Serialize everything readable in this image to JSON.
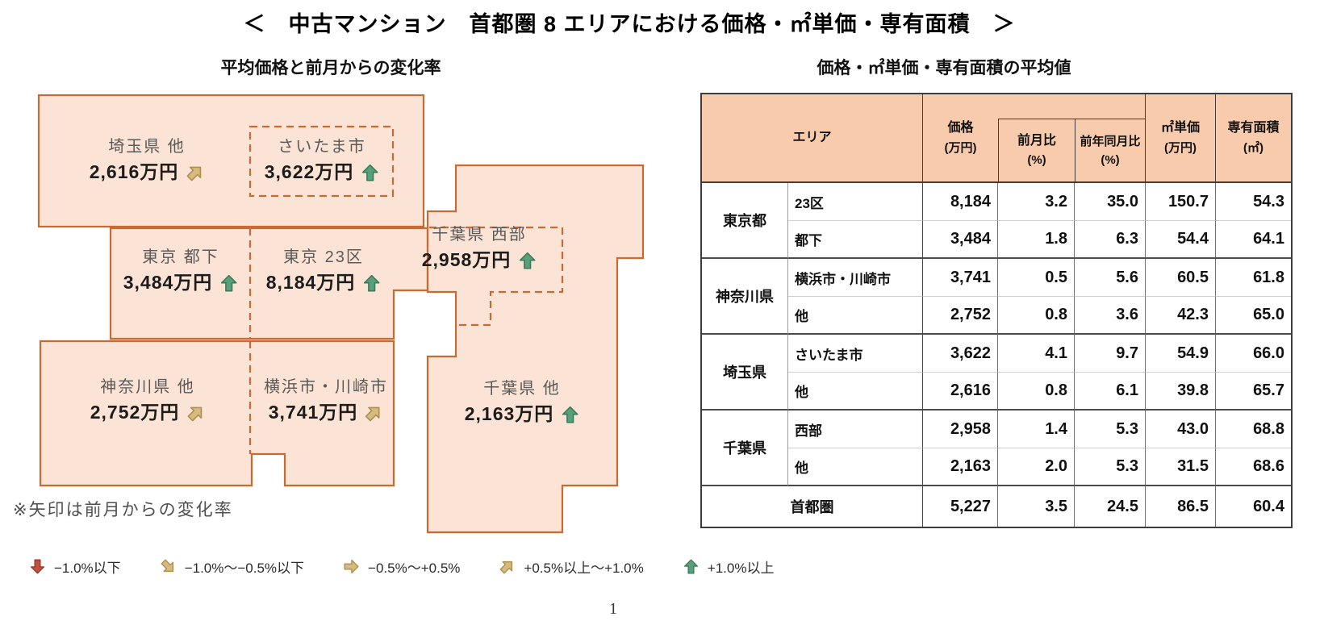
{
  "page": {
    "title": "＜　中古マンション　首都圏 8 エリアにおける価格・㎡単価・専有面積　＞",
    "page_number": "1"
  },
  "map_section": {
    "subtitle": "平均価格と前月からの変化率",
    "note": "※矢印は前月からの変化率",
    "fill_color": "#FBE3D5",
    "border_color": "#C96A33",
    "regions": [
      {
        "id": "saitama-other",
        "label": "埼玉県 他",
        "price": "2,616万円",
        "arrow": "up-right"
      },
      {
        "id": "saitama-city",
        "label": "さいたま市",
        "price": "3,622万円",
        "arrow": "up"
      },
      {
        "id": "tokyo-toka",
        "label": "東京 都下",
        "price": "3,484万円",
        "arrow": "up"
      },
      {
        "id": "tokyo-23ku",
        "label": "東京 23区",
        "price": "8,184万円",
        "arrow": "up"
      },
      {
        "id": "chiba-west",
        "label": "千葉県 西部",
        "price": "2,958万円",
        "arrow": "up"
      },
      {
        "id": "kanagawa-other",
        "label": "神奈川県 他",
        "price": "2,752万円",
        "arrow": "up-right"
      },
      {
        "id": "yokohama-kawasaki",
        "label": "横浜市・川崎市",
        "price": "3,741万円",
        "arrow": "up-right"
      },
      {
        "id": "chiba-other",
        "label": "千葉県 他",
        "price": "2,163万円",
        "arrow": "up"
      }
    ]
  },
  "table_section": {
    "subtitle": "価格・㎡単価・専有面積の平均値",
    "header_bg": "#F8CBAD",
    "header": {
      "area": "エリア",
      "columns": [
        {
          "lines": [
            "価格",
            "(万円)"
          ],
          "inset": false
        },
        {
          "lines": [
            "前月比",
            "(%)"
          ],
          "inset": true
        },
        {
          "lines": [
            "前年同月比",
            "(%)"
          ],
          "inset": true
        },
        {
          "lines": [
            "㎡単価",
            "(万円)"
          ],
          "inset": false
        },
        {
          "lines": [
            "専有面積",
            "(㎡)"
          ],
          "inset": false
        }
      ]
    },
    "groups": [
      {
        "pref": "東京都",
        "rows": [
          {
            "area": "23区",
            "values": [
              "8,184",
              "3.2",
              "35.0",
              "150.7",
              "54.3"
            ]
          },
          {
            "area": "都下",
            "values": [
              "3,484",
              "1.8",
              "6.3",
              "54.4",
              "64.1"
            ]
          }
        ]
      },
      {
        "pref": "神奈川県",
        "rows": [
          {
            "area": "横浜市・川崎市",
            "values": [
              "3,741",
              "0.5",
              "5.6",
              "60.5",
              "61.8"
            ]
          },
          {
            "area": "他",
            "values": [
              "2,752",
              "0.8",
              "3.6",
              "42.3",
              "65.0"
            ]
          }
        ]
      },
      {
        "pref": "埼玉県",
        "rows": [
          {
            "area": "さいたま市",
            "values": [
              "3,622",
              "4.1",
              "9.7",
              "54.9",
              "66.0"
            ]
          },
          {
            "area": "他",
            "values": [
              "2,616",
              "0.8",
              "6.1",
              "39.8",
              "65.7"
            ]
          }
        ]
      },
      {
        "pref": "千葉県",
        "rows": [
          {
            "area": "西部",
            "values": [
              "2,958",
              "1.4",
              "5.3",
              "43.0",
              "68.8"
            ]
          },
          {
            "area": "他",
            "values": [
              "2,163",
              "2.0",
              "5.3",
              "31.5",
              "68.6"
            ]
          }
        ]
      }
    ],
    "total": {
      "label": "首都圏",
      "values": [
        "5,227",
        "3.5",
        "24.5",
        "86.5",
        "60.4"
      ]
    }
  },
  "legend": {
    "items": [
      {
        "arrow": "down",
        "color": "red",
        "label": "−1.0%以下"
      },
      {
        "arrow": "down-right",
        "color": "tan",
        "label": "−1.0%～−0.5%以下"
      },
      {
        "arrow": "right",
        "color": "tan",
        "label": "−0.5%～+0.5%"
      },
      {
        "arrow": "up-right",
        "color": "tan",
        "label": "+0.5%以上～+1.0%"
      },
      {
        "arrow": "up",
        "color": "green",
        "label": "+1.0%以上"
      }
    ]
  },
  "arrow_colors": {
    "green": {
      "fill": "#57A17A",
      "stroke": "#3C7A5B"
    },
    "tan": {
      "fill": "#D6BB80",
      "stroke": "#AE8F4F"
    },
    "red": {
      "fill": "#C3503F",
      "stroke": "#93392B"
    }
  }
}
